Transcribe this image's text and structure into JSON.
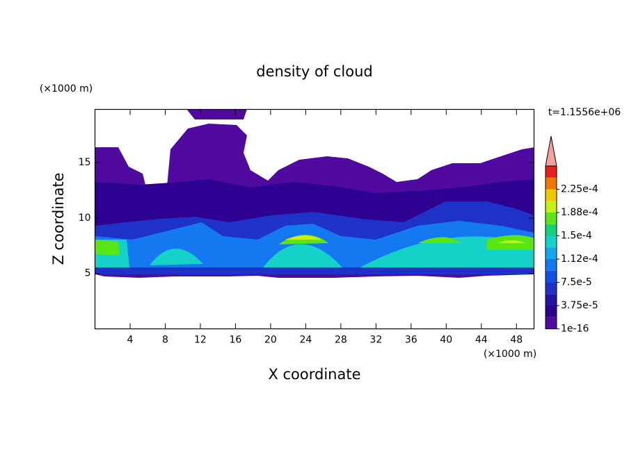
{
  "chart_data": {
    "type": "contour",
    "title": "density of cloud",
    "x_label": "X coordinate",
    "x_unit": "(×1000 m)",
    "y_label": "Z coordinate",
    "y_unit": "(×1000 m)",
    "annotation": "t=1.1556e+06",
    "xlim": [
      0,
      50
    ],
    "xticks": [
      4,
      8,
      12,
      16,
      20,
      24,
      28,
      32,
      36,
      40,
      44,
      48
    ],
    "ylim": [
      0,
      19.8
    ],
    "yticks": [
      5,
      10,
      15
    ],
    "colorbar": {
      "levels": [
        1e-16,
        1.875e-05,
        3.75e-05,
        5.625e-05,
        7.5e-05,
        9.375e-05,
        0.0001125,
        0.00013125,
        0.00015,
        0.00016875,
        0.0001875,
        0.00020625,
        0.000225,
        0.00024375
      ],
      "colors": [
        "#500aa0",
        "#2d0091",
        "#2314a8",
        "#1e32c8",
        "#1450e6",
        "#1478f0",
        "#14a5f0",
        "#14d2c8",
        "#14d278",
        "#5ae614",
        "#c8f014",
        "#f0c800",
        "#f07800",
        "#e61e1e"
      ],
      "extend_color": "#f5a0a0",
      "ticks": [
        {
          "value": 1e-16,
          "label": "1e-16"
        },
        {
          "value": 3.75e-05,
          "label": "3.75e-5"
        },
        {
          "value": 7.5e-05,
          "label": "7.5e-5"
        },
        {
          "value": 0.0001125,
          "label": "1.12e-4"
        },
        {
          "value": 0.00015,
          "label": "1.5e-4"
        },
        {
          "value": 0.0001875,
          "label": "1.88e-4"
        },
        {
          "value": 0.000225,
          "label": "2.25e-4"
        }
      ]
    }
  }
}
